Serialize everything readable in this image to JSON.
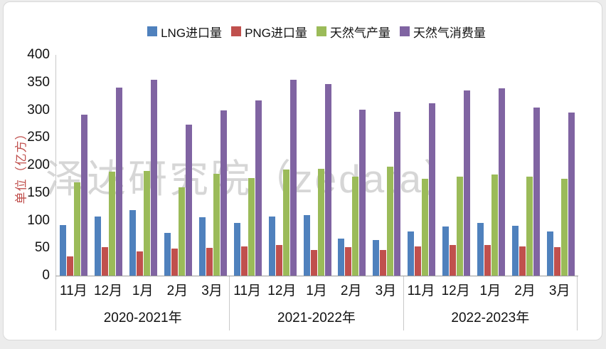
{
  "watermark": "泽达研究院（zedata）",
  "legend": [
    {
      "label": "LNG进口量",
      "color": "#4f81bd"
    },
    {
      "label": "PNG进口量",
      "color": "#c0504d"
    },
    {
      "label": "天然气产量",
      "color": "#9bbb59"
    },
    {
      "label": "天然气消费量",
      "color": "#8064a2"
    }
  ],
  "y_axis": {
    "title": "单位（亿方）",
    "title_color": "#c0504d",
    "ticks": [
      400,
      350,
      300,
      250,
      200,
      150,
      100,
      50,
      0
    ]
  },
  "chart_data": {
    "type": "bar",
    "title": "",
    "xlabel": "",
    "ylabel": "单位（亿方）",
    "ylim": [
      0,
      400
    ],
    "ytick_step": 50,
    "grid": false,
    "legend_position": "top",
    "months": [
      "11月",
      "12月",
      "1月",
      "2月",
      "3月"
    ],
    "year_groups": [
      "2020-2021年",
      "2021-2022年",
      "2022-2023年"
    ],
    "series": [
      {
        "name": "LNG进口量",
        "color": "#4f81bd",
        "values": [
          [
            92,
            107,
            119,
            77,
            106
          ],
          [
            96,
            107,
            110,
            67,
            64
          ],
          [
            80,
            89,
            95,
            90,
            80
          ]
        ]
      },
      {
        "name": "PNG进口量",
        "color": "#c0504d",
        "values": [
          [
            35,
            51,
            44,
            49,
            50
          ],
          [
            53,
            56,
            47,
            52,
            46
          ],
          [
            53,
            56,
            55,
            53,
            51
          ]
        ]
      },
      {
        "name": "天然气产量",
        "color": "#9bbb59",
        "values": [
          [
            169,
            188,
            190,
            160,
            184
          ],
          [
            177,
            192,
            193,
            180,
            197
          ],
          [
            176,
            179,
            183,
            180,
            175
          ]
        ]
      },
      {
        "name": "天然气消费量",
        "color": "#8064a2",
        "values": [
          [
            291,
            341,
            355,
            273,
            300
          ],
          [
            318,
            355,
            347,
            301,
            297
          ],
          [
            312,
            335,
            340,
            305,
            295
          ]
        ]
      }
    ]
  }
}
